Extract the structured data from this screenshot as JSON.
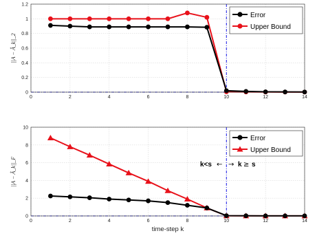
{
  "colors": {
    "error": "#000000",
    "upper_bound": "#e8111a",
    "threshold": "#1a1ae6",
    "grid": "#d9d9d9"
  },
  "chart_data": [
    {
      "type": "line",
      "title": "",
      "xlabel": "",
      "ylabel": "||A − Â_k||_2",
      "xlim": [
        0,
        14
      ],
      "ylim": [
        0,
        1.2
      ],
      "x_ticks": [
        "0",
        "2",
        "4",
        "6",
        "8",
        "10",
        "12",
        "14"
      ],
      "y_ticks": [
        "0",
        "0.2",
        "0.4",
        "0.6",
        "0.8",
        "1",
        "1.2"
      ],
      "y_tick_values": [
        0,
        0.2,
        0.4,
        0.6,
        0.8,
        1.0,
        1.2
      ],
      "grid": true,
      "legend_position": "top-right",
      "x": [
        1,
        2,
        3,
        4,
        5,
        6,
        7,
        8,
        9,
        10,
        11,
        12,
        13,
        14
      ],
      "series": [
        {
          "name": "Error",
          "marker": "circle",
          "values": [
            0.91,
            0.9,
            0.89,
            0.89,
            0.89,
            0.89,
            0.89,
            0.89,
            0.885,
            0.02,
            0.01,
            0.005,
            0.003,
            0.002
          ]
        },
        {
          "name": "Upper Bound",
          "marker": "circle",
          "values": [
            1.0,
            1.0,
            1.0,
            1.0,
            1.0,
            1.0,
            1.0,
            1.08,
            1.02,
            0.005,
            0.003,
            0.002,
            0.001,
            0.001
          ]
        }
      ],
      "vline_x": 10,
      "hline_y": 0
    },
    {
      "type": "line",
      "title": "",
      "xlabel": "time-step k",
      "ylabel": "||A − Â_k||_F",
      "xlim": [
        0,
        14
      ],
      "ylim": [
        0,
        10
      ],
      "x_ticks": [
        "0",
        "2",
        "4",
        "6",
        "8",
        "10",
        "12",
        "14"
      ],
      "y_ticks": [
        "0",
        "2",
        "4",
        "6",
        "8",
        "10"
      ],
      "y_tick_values": [
        0,
        2,
        4,
        6,
        8,
        10
      ],
      "grid": true,
      "legend_position": "top-right",
      "x": [
        1,
        2,
        3,
        4,
        5,
        6,
        7,
        8,
        9,
        10,
        11,
        12,
        13,
        14
      ],
      "series": [
        {
          "name": "Error",
          "marker": "circle",
          "values": [
            2.25,
            2.15,
            2.05,
            1.9,
            1.8,
            1.7,
            1.5,
            1.2,
            0.9,
            0.03,
            0.02,
            0.01,
            0.01,
            0.01
          ]
        },
        {
          "name": "Upper Bound",
          "marker": "triangle",
          "values": [
            8.8,
            7.8,
            6.85,
            5.85,
            4.85,
            3.9,
            2.85,
            1.9,
            0.9,
            0.02,
            0.01,
            0.01,
            0.01,
            0.01
          ]
        }
      ],
      "vline_x": 10,
      "hline_y": 0,
      "annotation": {
        "left": "k<s",
        "right": "k",
        "geq": "≥",
        "s": "s",
        "arrow_left": "←",
        "arrow_right": "→"
      }
    }
  ]
}
